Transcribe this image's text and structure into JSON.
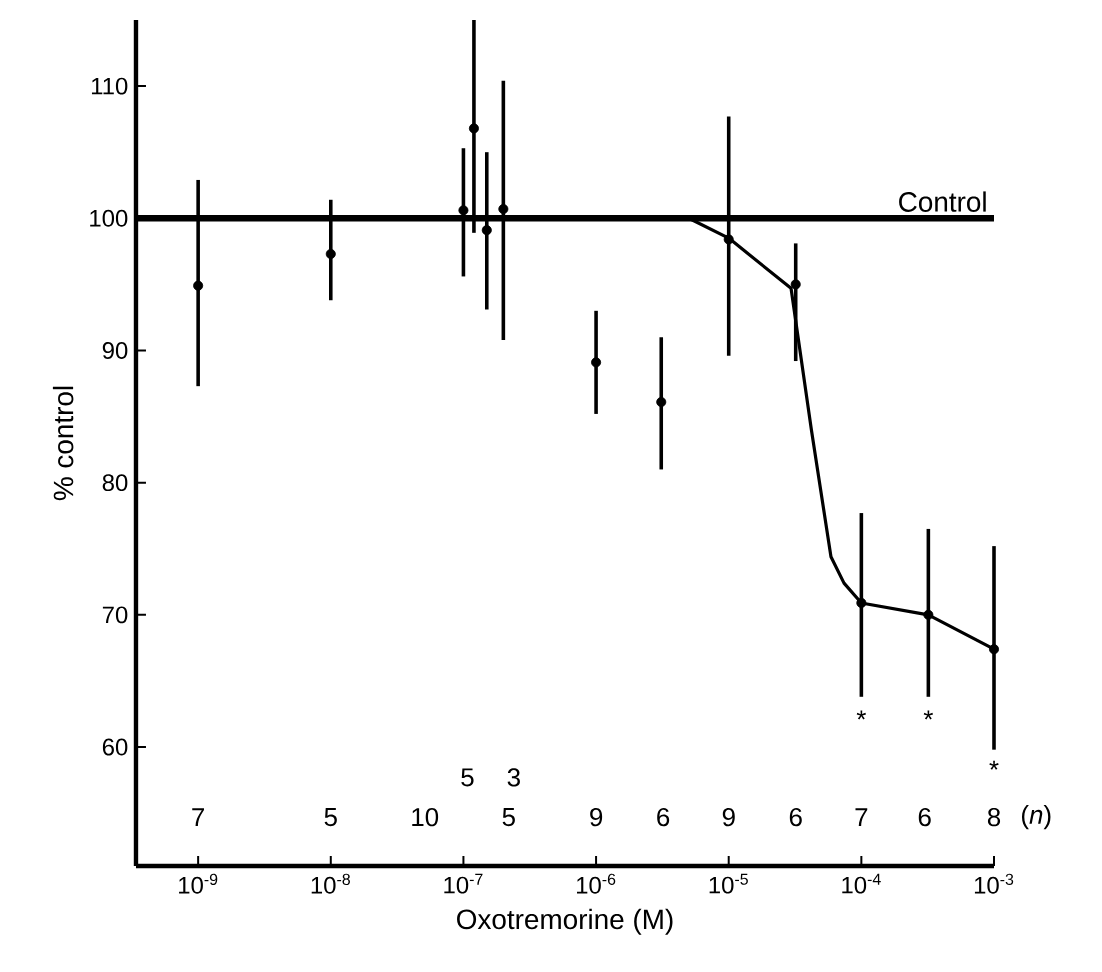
{
  "chart_data": {
    "type": "scatter",
    "log": "x",
    "xlabel": "Oxotremorine (M)",
    "ylabel": "% control",
    "xlim": [
      3.4e-10,
      0.001
    ],
    "ylim": [
      51,
      115
    ],
    "xticks": [
      {
        "value": 1e-09,
        "label": "10$^{-9}$"
      },
      {
        "value": 1e-08,
        "label": "10$^{-8}$"
      },
      {
        "value": 1e-07,
        "label": "10$^{-7}$"
      },
      {
        "value": 1e-06,
        "label": "10$^{-6}$"
      },
      {
        "value": 1e-05,
        "label": "10$^{-5}$"
      },
      {
        "value": 0.0001,
        "label": "10$^{-4}$"
      },
      {
        "value": 0.001,
        "label": "10$^{-3}$"
      }
    ],
    "yticks": [
      60,
      70,
      80,
      90,
      100,
      110
    ],
    "series": [
      {
        "color": "#000000",
        "marker": "circle",
        "x": [
          1e-09,
          1e-08,
          1e-07,
          1.2e-07,
          1.5e-07,
          2e-07,
          1e-06,
          3.1e-06,
          1e-05,
          3.2e-05,
          0.0001,
          0.00032,
          0.001
        ],
        "values": [
          94.9,
          97.3,
          100.6,
          106.8,
          99.1,
          100.7,
          89.1,
          86.1,
          98.4,
          95.0,
          70.9,
          70.0,
          67.4
        ],
        "errors": [
          [
            87.3,
            102.9
          ],
          [
            93.8,
            101.4
          ],
          [
            95.6,
            105.3
          ],
          [
            98.9,
            115
          ],
          [
            93.1,
            105
          ],
          [
            90.8,
            110.4
          ],
          [
            85.2,
            93
          ],
          [
            81,
            91
          ],
          [
            89.6,
            107.7
          ],
          [
            89.2,
            98.1
          ],
          [
            63.8,
            77.7
          ],
          [
            63.8,
            76.5
          ],
          [
            59.8,
            75.2
          ]
        ]
      },
      {
        "type": "line",
        "color": "#000000",
        "marker": "none",
        "line_style": "solid",
        "x": [
          5e-06,
          1e-05,
          2.95e-05,
          4.2e-05,
          5.9e-05,
          7.4e-05,
          0.0001,
          0.00032,
          0.001
        ],
        "values": [
          100,
          98.5,
          94.7,
          84.0,
          74.4,
          72.4,
          70.9,
          70.0,
          67.4
        ]
      }
    ],
    "ref_lines": [
      {
        "axis": "y",
        "value": 100,
        "label": "Control",
        "color": "#000000"
      }
    ],
    "annotations": [
      "*",
      "*",
      "*",
      "7",
      "5",
      "10",
      "5",
      "3",
      "5",
      "9",
      "6",
      "9",
      "6",
      "7",
      "6",
      "8",
      "(*n*)"
    ]
  }
}
